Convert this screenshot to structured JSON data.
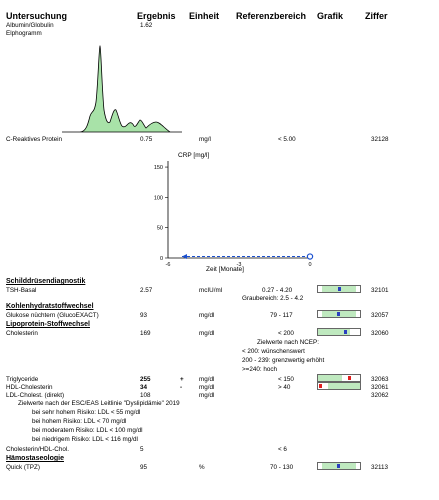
{
  "header": {
    "untersuchung": "Untersuchung",
    "ergebnis": "Ergebnis",
    "einheit": "Einheit",
    "referenzbereich": "Referenzbereich",
    "grafik": "Grafik",
    "ziffer": "Ziffer"
  },
  "albumin": {
    "name": "Albumin/Globulin",
    "value": "1.62"
  },
  "elphogramm": {
    "label": "Elphogramm"
  },
  "crp": {
    "name": "C-Reaktives Protein",
    "value": "0.75",
    "unit": "mg/l",
    "ref": "< 5.00",
    "code": "32128"
  },
  "crp_chart": {
    "type": "line",
    "ylabel": "CRP [mg/l]",
    "xlabel": "Zeit [Monate]",
    "yticks": [
      "150",
      "100",
      "50",
      "0"
    ],
    "xticks": [
      "-6",
      "-3",
      "0"
    ],
    "ylim": [
      0,
      160
    ],
    "xlim": [
      -6,
      0
    ],
    "x": [
      -6,
      0
    ],
    "values": [
      0.75,
      0.75
    ]
  },
  "sections": {
    "schilddruese": "Schilddrüsendiagnostik",
    "kohlenhydrat": "Kohlenhydratstoffwechsel",
    "lipoprotein": "Lipoprotein-Stoffwechsel",
    "haemostase": "Hämostaseologie"
  },
  "tsh": {
    "name": "TSH-Basal",
    "value": "2.57",
    "unit": "mcIU/ml",
    "ref": "0.27 - 4.20",
    "ref2": "Graubereich: 2.5 - 4.2",
    "code": "32101"
  },
  "glukose": {
    "name": "Glukose nüchtern (GlucoEXACT)",
    "value": "93",
    "unit": "mg/dl",
    "ref": "79 - 117",
    "code": "32057"
  },
  "chol": {
    "name": "Cholesterin",
    "value": "169",
    "unit": "mg/dl",
    "ref": "< 200",
    "code": "32060"
  },
  "chol_notes": [
    "Zielwerte nach NCEP:",
    "< 200: wünschenswert",
    "200 - 239: grenzwertig erhöht",
    ">=240: hoch"
  ],
  "trig": {
    "name": "Triglyceride",
    "value": "255",
    "flag": "+",
    "unit": "mg/dl",
    "ref": "< 150",
    "code": "32063"
  },
  "hdl": {
    "name": "HDL-Cholesterin",
    "value": "34",
    "flag": "-",
    "unit": "mg/dl",
    "ref": "> 40",
    "code": "32061"
  },
  "ldl": {
    "name": "LDL-Cholest. (direkt)",
    "value": "108",
    "unit": "mg/dl",
    "code": "32062"
  },
  "ldl_notes": [
    "Zielwerte nach der ESC/EAS Leitlinie \"Dyslipidämie\" 2019",
    "bei sehr hohem Risiko: LDL < 55 mg/dl",
    "bei hohem Risiko: LDL < 70 mg/dl",
    "bei moderatem Risiko: LDL < 100 mg/dl",
    "bei niedrigem Risiko: LDL < 116 mg/dl"
  ],
  "cholhdl": {
    "name": "Cholesterin/HDL-Chol.",
    "value": "5",
    "ref": "< 6"
  },
  "quick": {
    "name": "Quick (TPZ)",
    "value": "95",
    "unit": "%",
    "ref": "70 - 130",
    "code": "32113"
  },
  "colors": {
    "graph_fill": "#a8e2a8",
    "band": "#bfe9bf",
    "marker_blue": "#2a3fbf",
    "marker_red": "#e02020",
    "chart_line": "#1a4fcf"
  }
}
